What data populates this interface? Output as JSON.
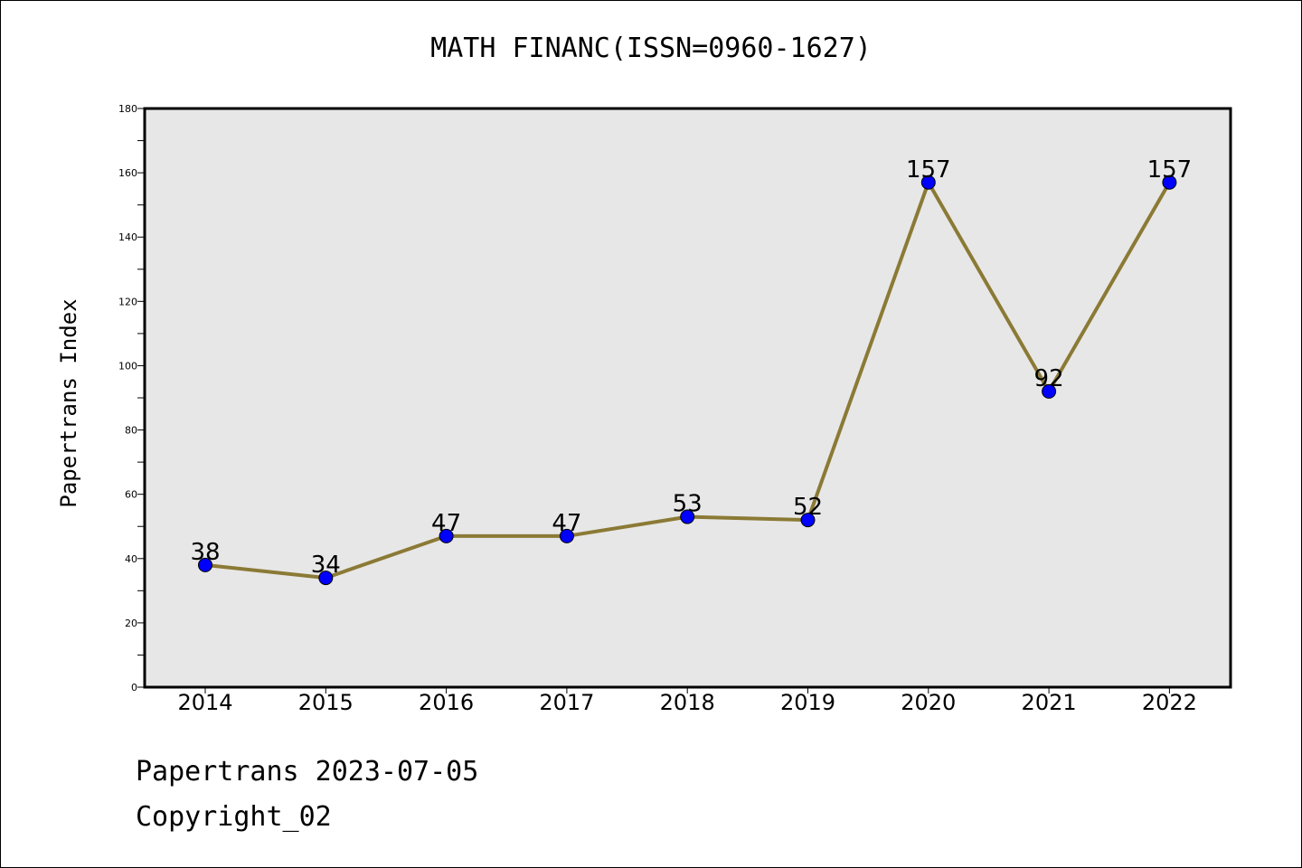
{
  "chart_data": {
    "type": "line",
    "title": "MATH FINANC(ISSN=0960-1627)",
    "xlabel": "",
    "ylabel": "Papertrans Index",
    "categories": [
      "2014",
      "2015",
      "2016",
      "2017",
      "2018",
      "2019",
      "2020",
      "2021",
      "2022"
    ],
    "series": [
      {
        "values": [
          38,
          34,
          47,
          47,
          53,
          52,
          157,
          92,
          157
        ]
      }
    ],
    "ylim": [
      0,
      180
    ],
    "yticks": [
      0,
      20,
      40,
      60,
      80,
      100,
      120,
      140,
      160,
      180
    ],
    "grid": false,
    "data_labels": true,
    "colors": {
      "line": "#8b7a35",
      "marker": "#0000ff",
      "plot_background": "#e7e7e7"
    }
  },
  "footer": {
    "date": "Papertrans 2023-07-05",
    "copyright": "Copyright_02"
  }
}
